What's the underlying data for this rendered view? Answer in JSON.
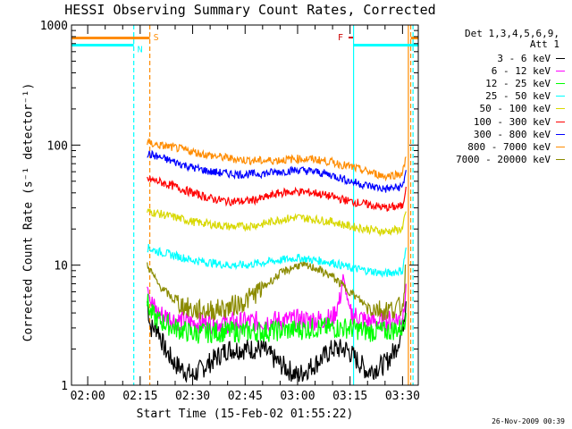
{
  "window": {
    "title": "HESSI Observing Summary Count Rates, Corrected"
  },
  "footer": {
    "timestamp": "26-Nov-2009 00:39"
  },
  "chart_data": {
    "type": "line",
    "title": "HESSI Observing Summary Count Rates, Corrected",
    "xlabel": "Start Time (15-Feb-02 01:55:22)",
    "ylabel": "Corrected Count Rate (s⁻¹ detector⁻¹)",
    "xlim": [
      "01:55:22",
      "03:34:30"
    ],
    "ylim": [
      1,
      1000
    ],
    "yscale": "log",
    "xticks": [
      "02:00",
      "02:15",
      "02:30",
      "02:45",
      "03:00",
      "03:15",
      "03:30"
    ],
    "yticks": [
      "1",
      "10",
      "100",
      "1000"
    ],
    "legend_header": [
      "Det 1,3,4,5,6,9,",
      "Att 1"
    ],
    "legend_position": "right",
    "series": [
      {
        "name": "3 - 6 keV",
        "color": "#000000",
        "x": [
          "02:17",
          "02:18",
          "02:20",
          "02:22",
          "02:25",
          "02:30",
          "02:40",
          "02:50",
          "02:55",
          "03:00",
          "03:05",
          "03:10",
          "03:14",
          "03:20",
          "03:25",
          "03:28",
          "03:30",
          "03:31"
        ],
        "y": [
          5,
          3,
          3,
          2,
          1.5,
          1.2,
          2,
          2,
          1.5,
          1.2,
          1.5,
          2,
          2,
          1.3,
          1.5,
          2,
          3,
          5
        ]
      },
      {
        "name": "6 - 12 keV",
        "color": "#ff00ff",
        "x": [
          "02:17",
          "02:18",
          "02:20",
          "02:25",
          "02:30",
          "02:40",
          "02:50",
          "03:00",
          "03:05",
          "03:10",
          "03:12",
          "03:13",
          "03:15",
          "03:20",
          "03:25",
          "03:30",
          "03:31"
        ],
        "y": [
          7,
          5,
          4,
          3.5,
          3.3,
          3.3,
          3.4,
          3.5,
          3.5,
          3.6,
          5,
          8,
          4,
          3.4,
          3.4,
          3.6,
          7
        ]
      },
      {
        "name": "12 - 25 keV",
        "color": "#00ff00",
        "x": [
          "02:17",
          "02:18",
          "02:20",
          "02:25",
          "02:30",
          "02:40",
          "02:50",
          "03:00",
          "03:05",
          "03:10",
          "03:15",
          "03:20",
          "03:25",
          "03:30",
          "03:31"
        ],
        "y": [
          5,
          4,
          3.5,
          3,
          2.7,
          2.8,
          2.8,
          2.9,
          3,
          3,
          3,
          2.8,
          2.8,
          3,
          4
        ]
      },
      {
        "name": "25 - 50 keV",
        "color": "#00ffff",
        "x": [
          "02:17",
          "02:20",
          "02:25",
          "02:30",
          "02:35",
          "02:40",
          "02:45",
          "02:50",
          "02:55",
          "03:00",
          "03:05",
          "03:10",
          "03:15",
          "03:20",
          "03:25",
          "03:30",
          "03:31"
        ],
        "y": [
          14,
          13,
          12,
          11,
          10.5,
          10,
          10,
          10.5,
          11,
          11.5,
          11,
          10.5,
          9.5,
          9,
          8.5,
          9,
          14
        ]
      },
      {
        "name": "50 - 100 keV",
        "color": "#d8d800",
        "x": [
          "02:17",
          "02:20",
          "02:25",
          "02:30",
          "02:35",
          "02:40",
          "02:45",
          "02:50",
          "02:55",
          "03:00",
          "03:05",
          "03:10",
          "03:15",
          "03:20",
          "03:25",
          "03:30",
          "03:31"
        ],
        "y": [
          28,
          27,
          25,
          23,
          22,
          21,
          21,
          22,
          24,
          25,
          24,
          23,
          21,
          20,
          19,
          20,
          28
        ]
      },
      {
        "name": "100 - 300 keV",
        "color": "#ff0000",
        "x": [
          "02:17",
          "02:20",
          "02:25",
          "02:30",
          "02:35",
          "02:40",
          "02:45",
          "02:50",
          "02:55",
          "03:00",
          "03:05",
          "03:10",
          "03:15",
          "03:20",
          "03:25",
          "03:30",
          "03:31"
        ],
        "y": [
          52,
          50,
          45,
          40,
          36,
          34,
          34,
          36,
          40,
          41,
          40,
          37,
          34,
          32,
          30,
          31,
          45
        ]
      },
      {
        "name": "300 - 800 keV",
        "color": "#0000ff",
        "x": [
          "02:17",
          "02:20",
          "02:25",
          "02:30",
          "02:35",
          "02:40",
          "02:45",
          "02:50",
          "02:55",
          "03:00",
          "03:05",
          "03:10",
          "03:15",
          "03:20",
          "03:25",
          "03:30",
          "03:31"
        ],
        "y": [
          85,
          80,
          72,
          65,
          60,
          58,
          57,
          58,
          60,
          62,
          60,
          56,
          50,
          46,
          43,
          45,
          62
        ]
      },
      {
        "name": "800 - 7000 keV",
        "color": "#ff8c00",
        "x": [
          "02:17",
          "02:20",
          "02:25",
          "02:30",
          "02:35",
          "02:40",
          "02:45",
          "02:50",
          "02:55",
          "03:00",
          "03:05",
          "03:10",
          "03:15",
          "03:20",
          "03:25",
          "03:30",
          "03:31"
        ],
        "y": [
          105,
          100,
          95,
          88,
          82,
          78,
          75,
          74,
          75,
          77,
          76,
          72,
          66,
          60,
          55,
          58,
          80
        ]
      },
      {
        "name": "7000 - 20000 keV",
        "color": "#8b8b00",
        "x": [
          "02:17",
          "02:18",
          "02:20",
          "02:25",
          "02:30",
          "02:35",
          "02:40",
          "02:45",
          "02:50",
          "02:55",
          "03:00",
          "03:05",
          "03:10",
          "03:15",
          "03:20",
          "03:25",
          "03:30",
          "03:31"
        ],
        "y": [
          10,
          9,
          7,
          5,
          4.2,
          4.2,
          4.4,
          5,
          6.5,
          8.5,
          10,
          9.5,
          8,
          6,
          4.5,
          4.2,
          4.5,
          10
        ]
      }
    ],
    "annotations": [
      {
        "label": "S",
        "time": "02:17:45",
        "color": "#ff8c00"
      },
      {
        "label": "N",
        "time": "02:13:10",
        "color": "#00ffff"
      },
      {
        "label": "F",
        "time": "03:11:30",
        "value": 800,
        "color": "#cc0000"
      }
    ],
    "vertical_lines": [
      {
        "time": "02:13:10",
        "color": "#00ffff",
        "style": "dashed"
      },
      {
        "time": "02:17:45",
        "color": "#ff8c00",
        "style": "dashed"
      },
      {
        "time": "03:16:00",
        "color": "#00ffff",
        "style": "solid"
      },
      {
        "time": "03:31:40",
        "color": "#ff8c00",
        "style": "solid"
      },
      {
        "time": "03:32:20",
        "color": "#ff8c00",
        "style": "dashed"
      },
      {
        "time": "03:33:00",
        "color": "#00ffff",
        "style": "dashed"
      }
    ],
    "flag_bars": [
      {
        "name": "saa",
        "color": "#ff8c00",
        "value": 780,
        "segments": [
          [
            "01:55:22",
            "02:17:45"
          ],
          [
            "03:32:20",
            "03:34:30"
          ]
        ]
      },
      {
        "name": "night",
        "color": "#00ffff",
        "value": 680,
        "segments": [
          [
            "01:55:22",
            "02:13:10"
          ],
          [
            "03:16:00",
            "03:34:30"
          ]
        ]
      }
    ]
  }
}
